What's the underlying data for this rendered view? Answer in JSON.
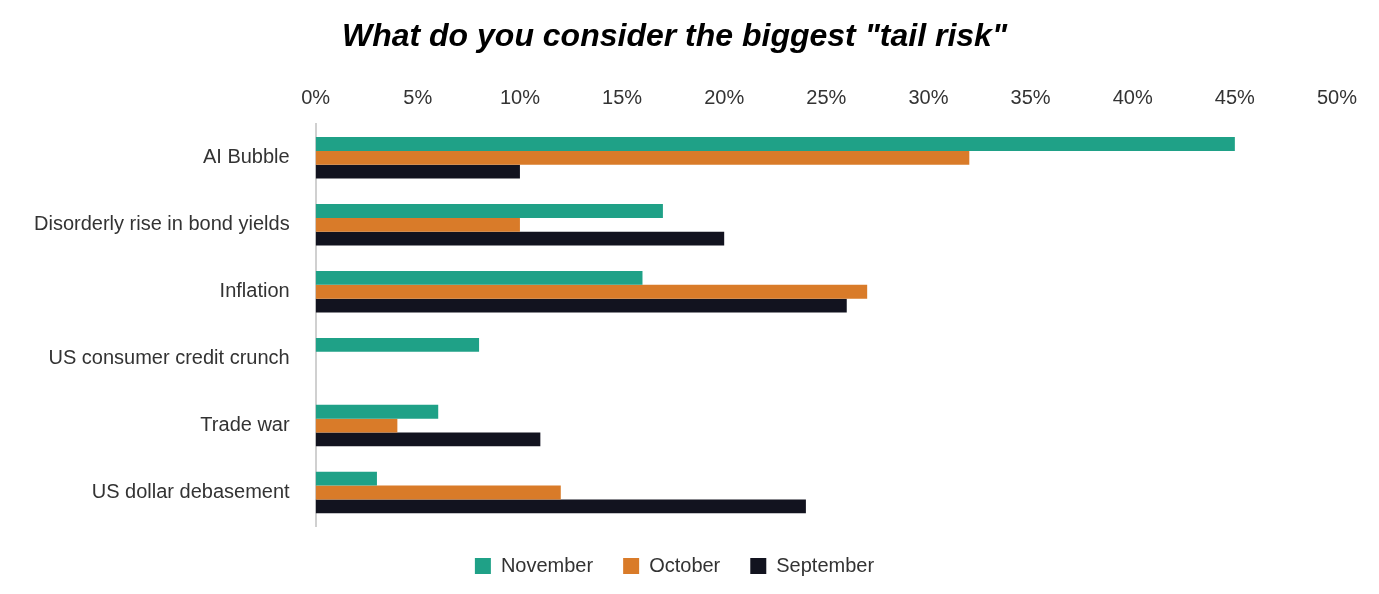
{
  "chart_data": {
    "type": "bar",
    "orientation": "horizontal",
    "title": "What do you consider the biggest \"tail risk\"",
    "categories": [
      "AI Bubble",
      "Disorderly rise in bond yields",
      "Inflation",
      "US consumer credit crunch",
      "Trade war",
      "US dollar debasement"
    ],
    "series": [
      {
        "name": "November",
        "color": "#1fa187",
        "values": [
          45,
          17,
          16,
          8,
          6,
          3
        ]
      },
      {
        "name": "October",
        "color": "#d97b29",
        "values": [
          32,
          10,
          27,
          0,
          4,
          12
        ]
      },
      {
        "name": "September",
        "color": "#12131f",
        "values": [
          10,
          20,
          26,
          0,
          11,
          24
        ]
      }
    ],
    "xlim": [
      0,
      50
    ],
    "xticks": [
      {
        "value": 0,
        "label": "0%"
      },
      {
        "value": 5,
        "label": "5%"
      },
      {
        "value": 10,
        "label": "10%"
      },
      {
        "value": 15,
        "label": "15%"
      },
      {
        "value": 20,
        "label": "20%"
      },
      {
        "value": 25,
        "label": "25%"
      },
      {
        "value": 30,
        "label": "30%"
      },
      {
        "value": 35,
        "label": "35%"
      },
      {
        "value": 40,
        "label": "40%"
      },
      {
        "value": 45,
        "label": "45%"
      },
      {
        "value": 50,
        "label": "50%"
      }
    ],
    "grid": false,
    "legend": "bottom"
  }
}
